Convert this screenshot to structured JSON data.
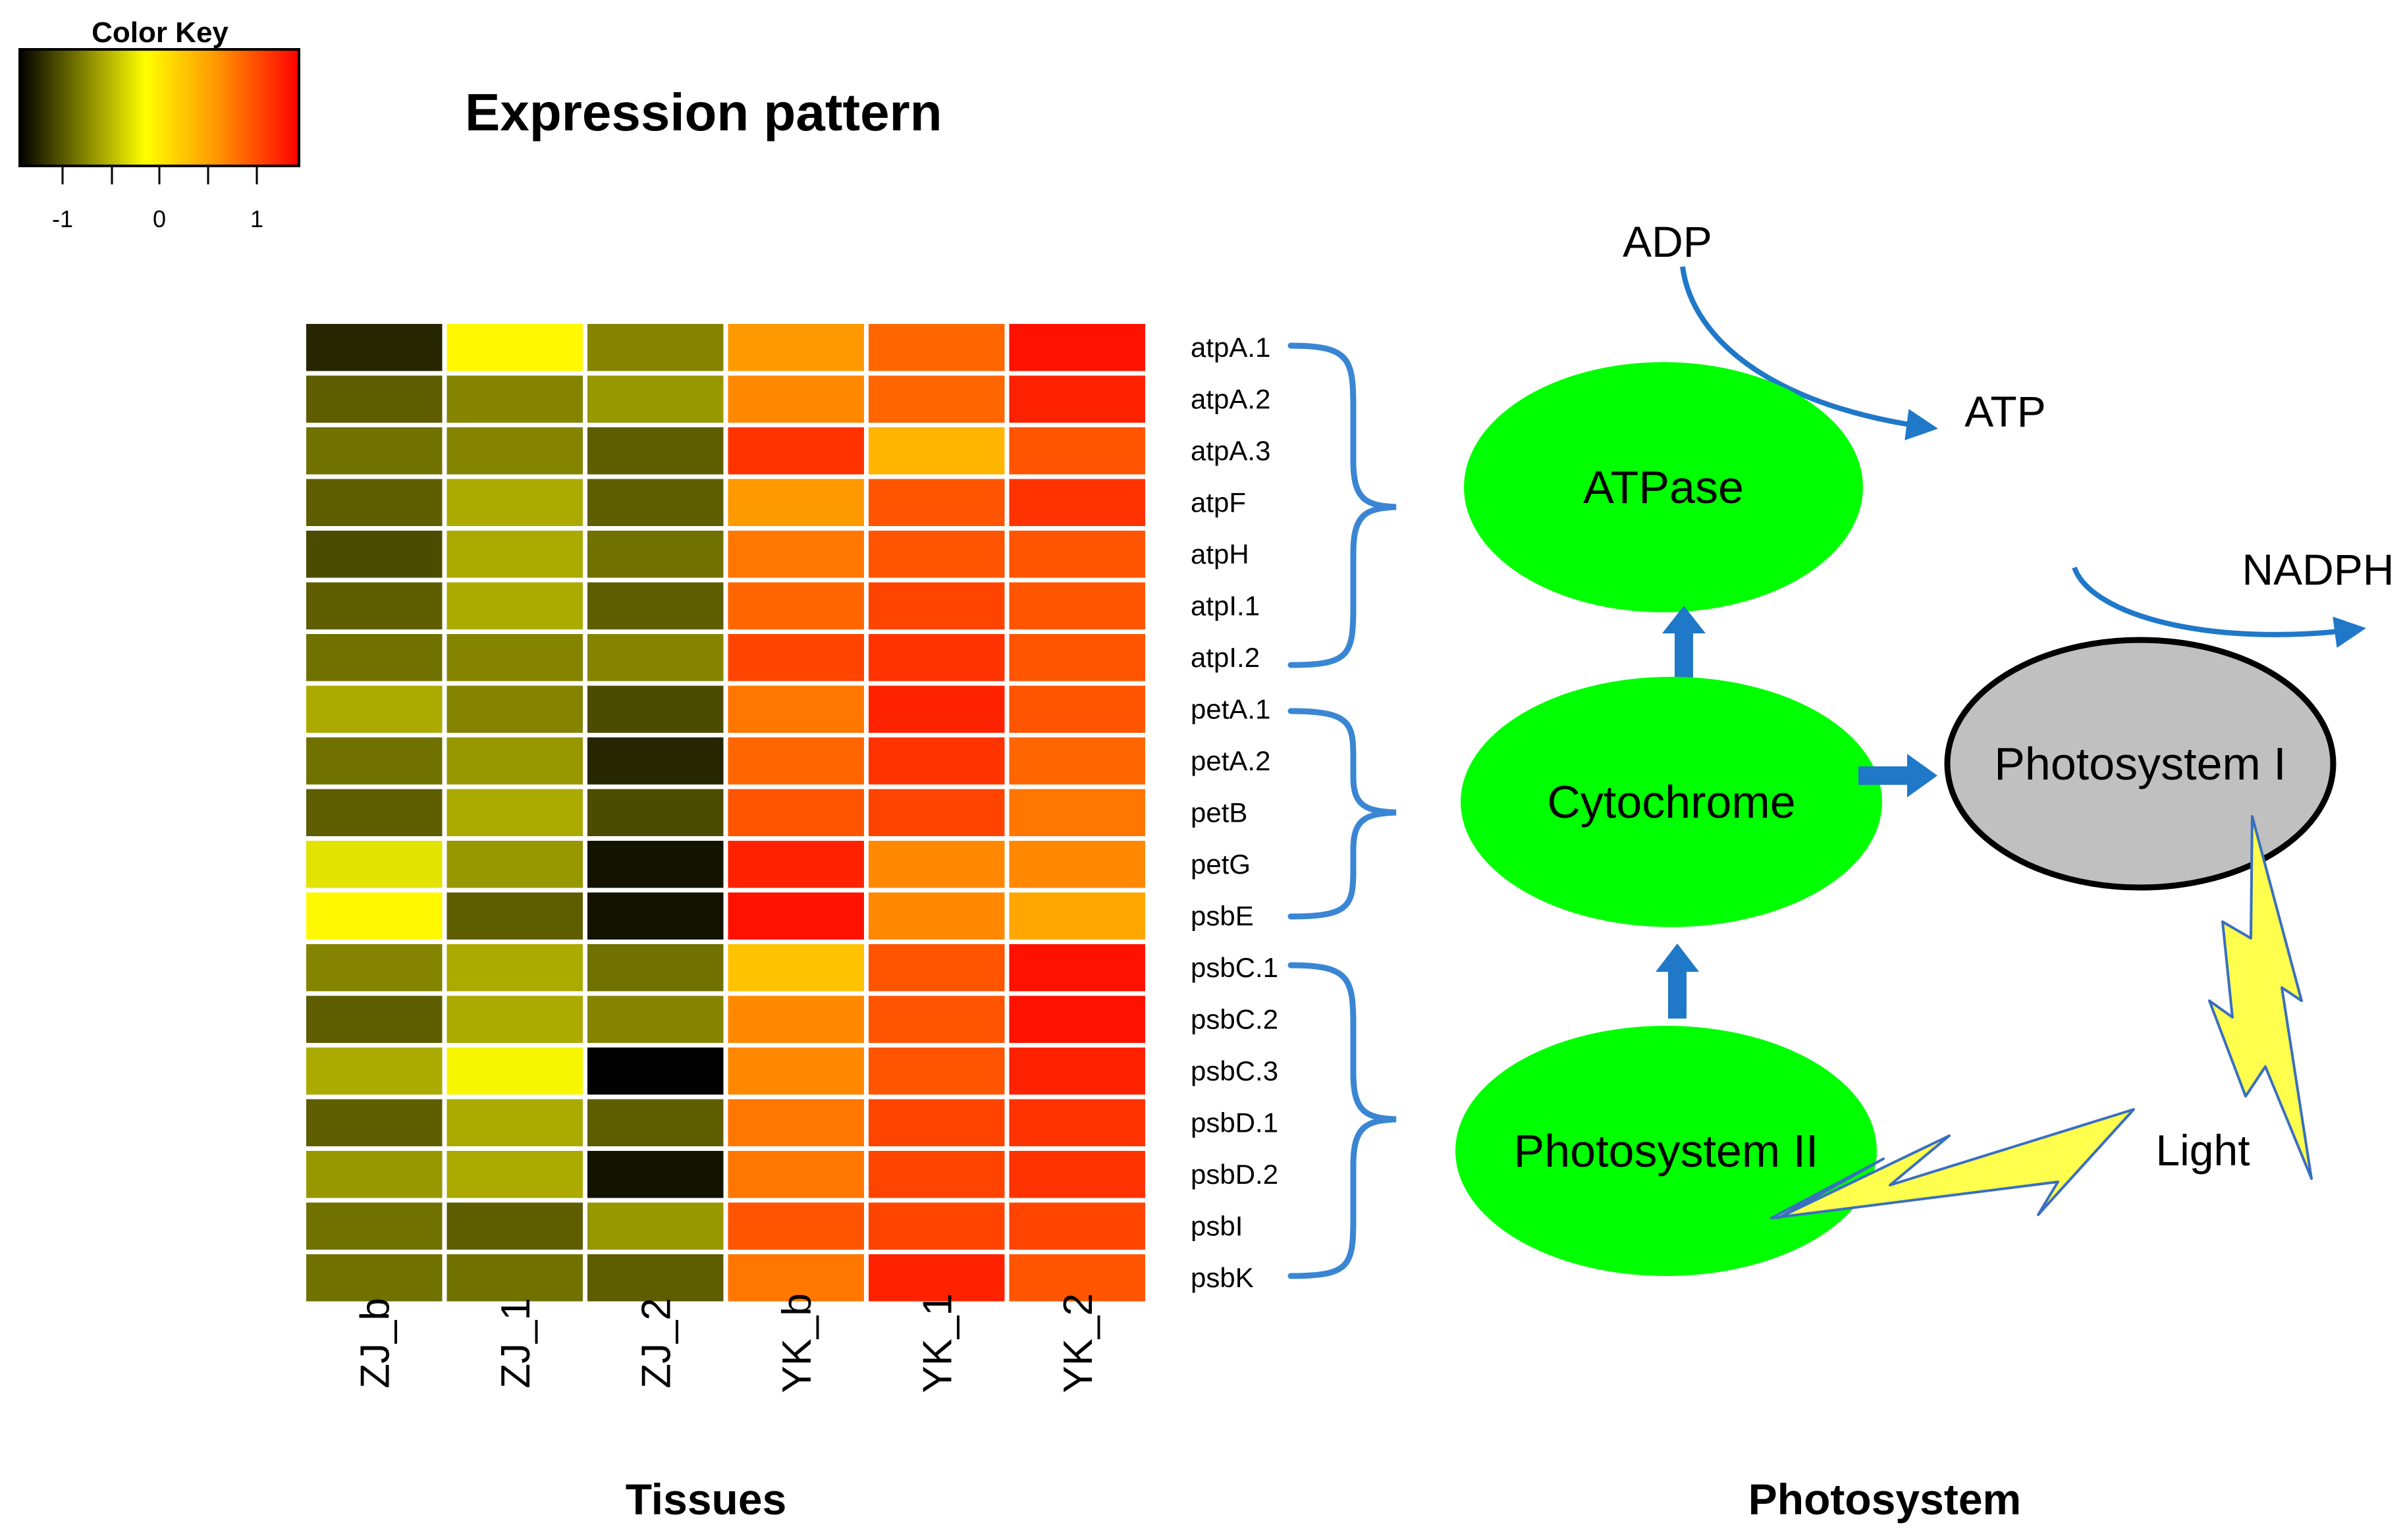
{
  "figure_title": "Expression pattern",
  "color_key": {
    "title": "Color Key",
    "ticks": [
      "-1",
      "0",
      "1"
    ],
    "gradient": [
      "#000000",
      "#ffff00",
      "#ff9900",
      "#ff0000"
    ]
  },
  "chart_data": {
    "type": "heatmap",
    "title": "Expression pattern",
    "xlabel": "Tissues",
    "ylabel": "",
    "columns": [
      "ZJ_b",
      "ZJ_1",
      "ZJ_2",
      "YK_b",
      "YK_1",
      "YK_2"
    ],
    "rows": [
      "atpA.1",
      "atpA.2",
      "atpA.3",
      "atpF",
      "atpH",
      "atpI.1",
      "atpI.2",
      "petA.1",
      "petA.2",
      "petB",
      "petG",
      "psbE",
      "psbC.1",
      "psbC.2",
      "psbC.3",
      "psbD.1",
      "psbD.2",
      "psbI",
      "psbK"
    ],
    "value_range": [
      -1.5,
      1.5
    ],
    "values": [
      [
        -1.3,
        -0.1,
        -0.8,
        0.6,
        0.9,
        1.4
      ],
      [
        -1.0,
        -0.8,
        -0.7,
        0.7,
        0.9,
        1.3
      ],
      [
        -0.9,
        -0.8,
        -1.0,
        1.2,
        0.4,
        1.0
      ],
      [
        -1.0,
        -0.6,
        -1.0,
        0.6,
        1.0,
        1.2
      ],
      [
        -1.1,
        -0.6,
        -0.9,
        0.8,
        1.0,
        1.0
      ],
      [
        -1.0,
        -0.6,
        -1.0,
        0.9,
        1.1,
        1.0
      ],
      [
        -0.9,
        -0.8,
        -0.8,
        1.1,
        1.2,
        1.0
      ],
      [
        -0.6,
        -0.8,
        -1.1,
        0.8,
        1.3,
        1.0
      ],
      [
        -0.9,
        -0.7,
        -1.3,
        0.9,
        1.2,
        0.9
      ],
      [
        -1.0,
        -0.6,
        -1.1,
        1.0,
        1.1,
        0.8
      ],
      [
        -0.3,
        -0.7,
        -1.4,
        1.3,
        0.7,
        0.7
      ],
      [
        -0.1,
        -1.0,
        -1.4,
        1.4,
        0.7,
        0.5
      ],
      [
        -0.8,
        -0.6,
        -0.9,
        0.3,
        1.0,
        1.4
      ],
      [
        -1.0,
        -0.6,
        -0.8,
        0.7,
        1.0,
        1.4
      ],
      [
        -0.6,
        -0.2,
        -1.5,
        0.7,
        1.0,
        1.3
      ],
      [
        -1.0,
        -0.6,
        -1.0,
        0.8,
        1.1,
        1.2
      ],
      [
        -0.7,
        -0.6,
        -1.4,
        0.8,
        1.1,
        1.2
      ],
      [
        -0.9,
        -1.0,
        -0.7,
        1.0,
        1.1,
        1.1
      ],
      [
        -0.9,
        -0.9,
        -1.0,
        0.8,
        1.3,
        1.0
      ]
    ],
    "gene_groups": [
      {
        "label": "ATPase",
        "rows": [
          0,
          6
        ]
      },
      {
        "label": "Cytochrome",
        "rows": [
          7,
          11
        ]
      },
      {
        "label": "Photosystem II",
        "rows": [
          12,
          18
        ]
      }
    ]
  },
  "diagram": {
    "title": "Photosystem",
    "nodes": {
      "atpase": "ATPase",
      "cytochrome": "Cytochrome",
      "ps2": "Photosystem II",
      "ps1": "Photosystem I"
    },
    "labels": {
      "adp": "ADP",
      "atp": "ATP",
      "nadph": "NADPH",
      "light": "Light"
    },
    "colors": {
      "node_fill": "#00ff00",
      "ps1_fill": "#c0c0c0",
      "arrow": "#1f78c8",
      "bracket": "#3a86d4",
      "bolt": "#ffff4d",
      "bolt_stroke": "#3a6fc0"
    }
  }
}
